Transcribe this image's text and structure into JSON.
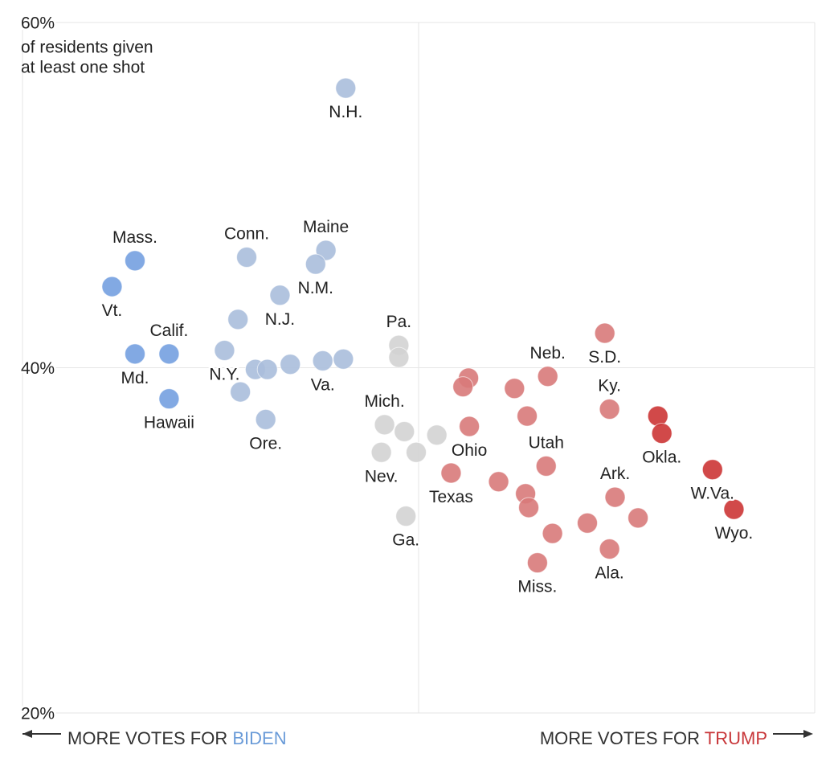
{
  "chart_data": {
    "type": "scatter",
    "y_label": [
      "of residents given",
      "at least one shot"
    ],
    "x_label_left": {
      "text": "MORE VOTES FOR",
      "highlight": "BIDEN",
      "color": "#6a9bd8"
    },
    "x_label_right": {
      "text": "MORE VOTES FOR",
      "highlight": "TRUMP",
      "color": "#c8373a"
    },
    "xlim": [
      -50,
      50
    ],
    "xticks": [
      0
    ],
    "ylim": [
      20,
      60
    ],
    "yticks": [
      {
        "value": 20,
        "label": "20%"
      },
      {
        "value": 40,
        "label": "40%"
      },
      {
        "value": 60,
        "label": "60%"
      }
    ],
    "grid": true,
    "series": [
      {
        "color": "#74a0e0",
        "x": [
          -35.8,
          -38.7,
          -31.5,
          -35.8,
          -31.5
        ],
        "values": [
          46.2,
          44.7,
          40.8,
          40.8,
          38.2
        ],
        "labels": [
          "Mass.",
          "Vt.",
          "Calif.",
          "Md.",
          "Hawaii"
        ]
      },
      {
        "color": "#aabedb",
        "x": [
          -9.2,
          -21.7,
          -11.7,
          -13.0,
          -17.5,
          -22.8,
          -24.5,
          -20.6,
          -19.1,
          -16.2,
          -12.1,
          -9.5,
          -22.5,
          -19.3
        ],
        "values": [
          56.2,
          46.4,
          46.8,
          46.0,
          44.2,
          42.8,
          41.0,
          39.9,
          39.9,
          40.2,
          40.4,
          40.5,
          38.6,
          37.0
        ],
        "labels": [
          "N.H.",
          "Conn.",
          "Maine",
          "N.M.",
          "N.J.",
          null,
          "N.Y.",
          null,
          null,
          null,
          "Va.",
          null,
          null,
          "Ore."
        ]
      },
      {
        "color": "#d3d3d3",
        "x": [
          -2.5,
          -2.5,
          -4.3,
          -1.8,
          2.3,
          -4.7,
          -0.3,
          -1.6
        ],
        "values": [
          41.3,
          40.6,
          36.7,
          36.3,
          36.1,
          35.1,
          35.1,
          31.4
        ],
        "labels": [
          "Pa.",
          null,
          "Mich.",
          null,
          null,
          "Nev.",
          null,
          "Ga."
        ]
      },
      {
        "color": "#d87a7a",
        "x": [
          23.5,
          6.3,
          5.6,
          16.3,
          12.1,
          13.7,
          6.4,
          24.1,
          16.1,
          4.1,
          10.1,
          13.5,
          13.9,
          24.8,
          27.7,
          21.3,
          16.9,
          24.1,
          15.0
        ],
        "values": [
          42.0,
          39.4,
          38.9,
          39.5,
          38.8,
          37.2,
          36.6,
          37.6,
          34.3,
          33.9,
          33.4,
          32.7,
          31.9,
          32.5,
          31.3,
          31.0,
          30.4,
          29.5,
          28.7
        ],
        "labels": [
          "S.D.",
          null,
          null,
          "Neb.",
          null,
          null,
          "Ohio",
          "Ky.",
          "Utah",
          "Texas",
          null,
          null,
          null,
          "Ark.",
          null,
          null,
          null,
          "Ala.",
          "Miss."
        ]
      },
      {
        "color": "#cc3535",
        "x": [
          30.2,
          30.7,
          37.1,
          39.8
        ],
        "values": [
          37.2,
          36.2,
          34.1,
          31.8
        ],
        "labels": [
          null,
          "Okla.",
          "W.Va.",
          "Wyo."
        ]
      }
    ]
  }
}
